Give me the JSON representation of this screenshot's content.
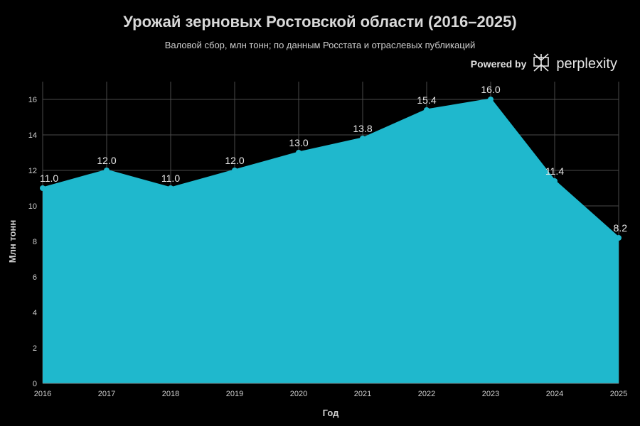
{
  "chart_data": {
    "type": "area",
    "title": "Урожай зерновых Ростовской области (2016–2025)",
    "subtitle": "Валовой сбор, млн тонн; по данным Росстата и отраслевых публикаций",
    "xlabel": "Год",
    "ylabel": "Млн тонн",
    "categories": [
      "2016",
      "2017",
      "2018",
      "2019",
      "2020",
      "2021",
      "2022",
      "2023",
      "2024",
      "2025"
    ],
    "values": [
      11.0,
      12.0,
      11.0,
      12.0,
      13.0,
      13.8,
      15.4,
      16.0,
      11.4,
      8.2
    ],
    "data_labels": [
      "11.0",
      "12.0",
      "11.0",
      "12.0",
      "13.0",
      "13.8",
      "15.4",
      "16.0",
      "11.4",
      "8.2"
    ],
    "ylim": [
      0,
      17
    ],
    "yticks": [
      0,
      2,
      4,
      6,
      8,
      10,
      12,
      14,
      16
    ],
    "grid": true,
    "fill_color": "#1fb8cd",
    "background": "#000000",
    "grid_color": "#4a4a4a"
  },
  "branding": {
    "prefix": "Powered by",
    "name": "perplexity",
    "icon": "perplexity-logo-icon"
  }
}
